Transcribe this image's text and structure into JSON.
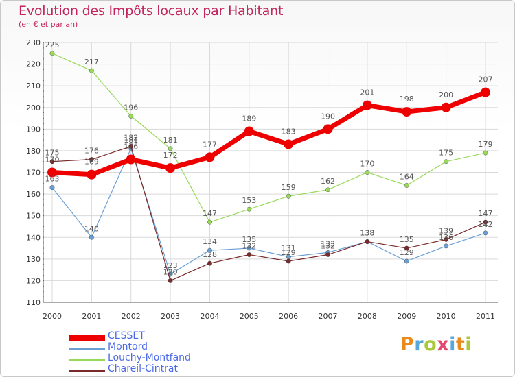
{
  "title": "Evolution des Impôts locaux par Habitant",
  "subtitle": "(en € et par an)",
  "logo_text": "Proxiti",
  "chart_data": {
    "type": "line",
    "title": "Evolution des Impôts locaux par Habitant",
    "subtitle": "(en € et par an)",
    "xlabel": "",
    "ylabel": "",
    "categories": [
      "2000",
      "2001",
      "2002",
      "2003",
      "2004",
      "2005",
      "2006",
      "2007",
      "2008",
      "2009",
      "2010",
      "2011"
    ],
    "ylim": [
      110,
      230
    ],
    "yticks": [
      110,
      120,
      130,
      140,
      150,
      160,
      170,
      180,
      190,
      200,
      210,
      220,
      230
    ],
    "grid": true,
    "legend_position": "bottom-left",
    "series": [
      {
        "name": "CESSET",
        "color": "#ee0000",
        "width": 7,
        "marker": 7,
        "labelColor": "#555555",
        "values": [
          170,
          169,
          176,
          172,
          177,
          189,
          183,
          190,
          201,
          198,
          200,
          207
        ]
      },
      {
        "name": "Montord",
        "color": "#6a9fd4",
        "width": 1.2,
        "marker": 3.2,
        "labelColor": "#555555",
        "values": [
          163,
          140,
          181,
          123,
          134,
          135,
          131,
          133,
          138,
          129,
          136,
          142
        ]
      },
      {
        "name": "Louchy-Montfand",
        "color": "#99d95a",
        "width": 1.2,
        "marker": 3.2,
        "labelColor": "#555555",
        "values": [
          225,
          217,
          196,
          181,
          147,
          153,
          159,
          162,
          170,
          164,
          175,
          179
        ]
      },
      {
        "name": "Chareil-Cintrat",
        "color": "#7a2a2a",
        "width": 1.2,
        "marker": 3.2,
        "labelColor": "#555555",
        "values": [
          175,
          176,
          182,
          120,
          128,
          132,
          129,
          132,
          138,
          135,
          139,
          147
        ]
      }
    ]
  }
}
